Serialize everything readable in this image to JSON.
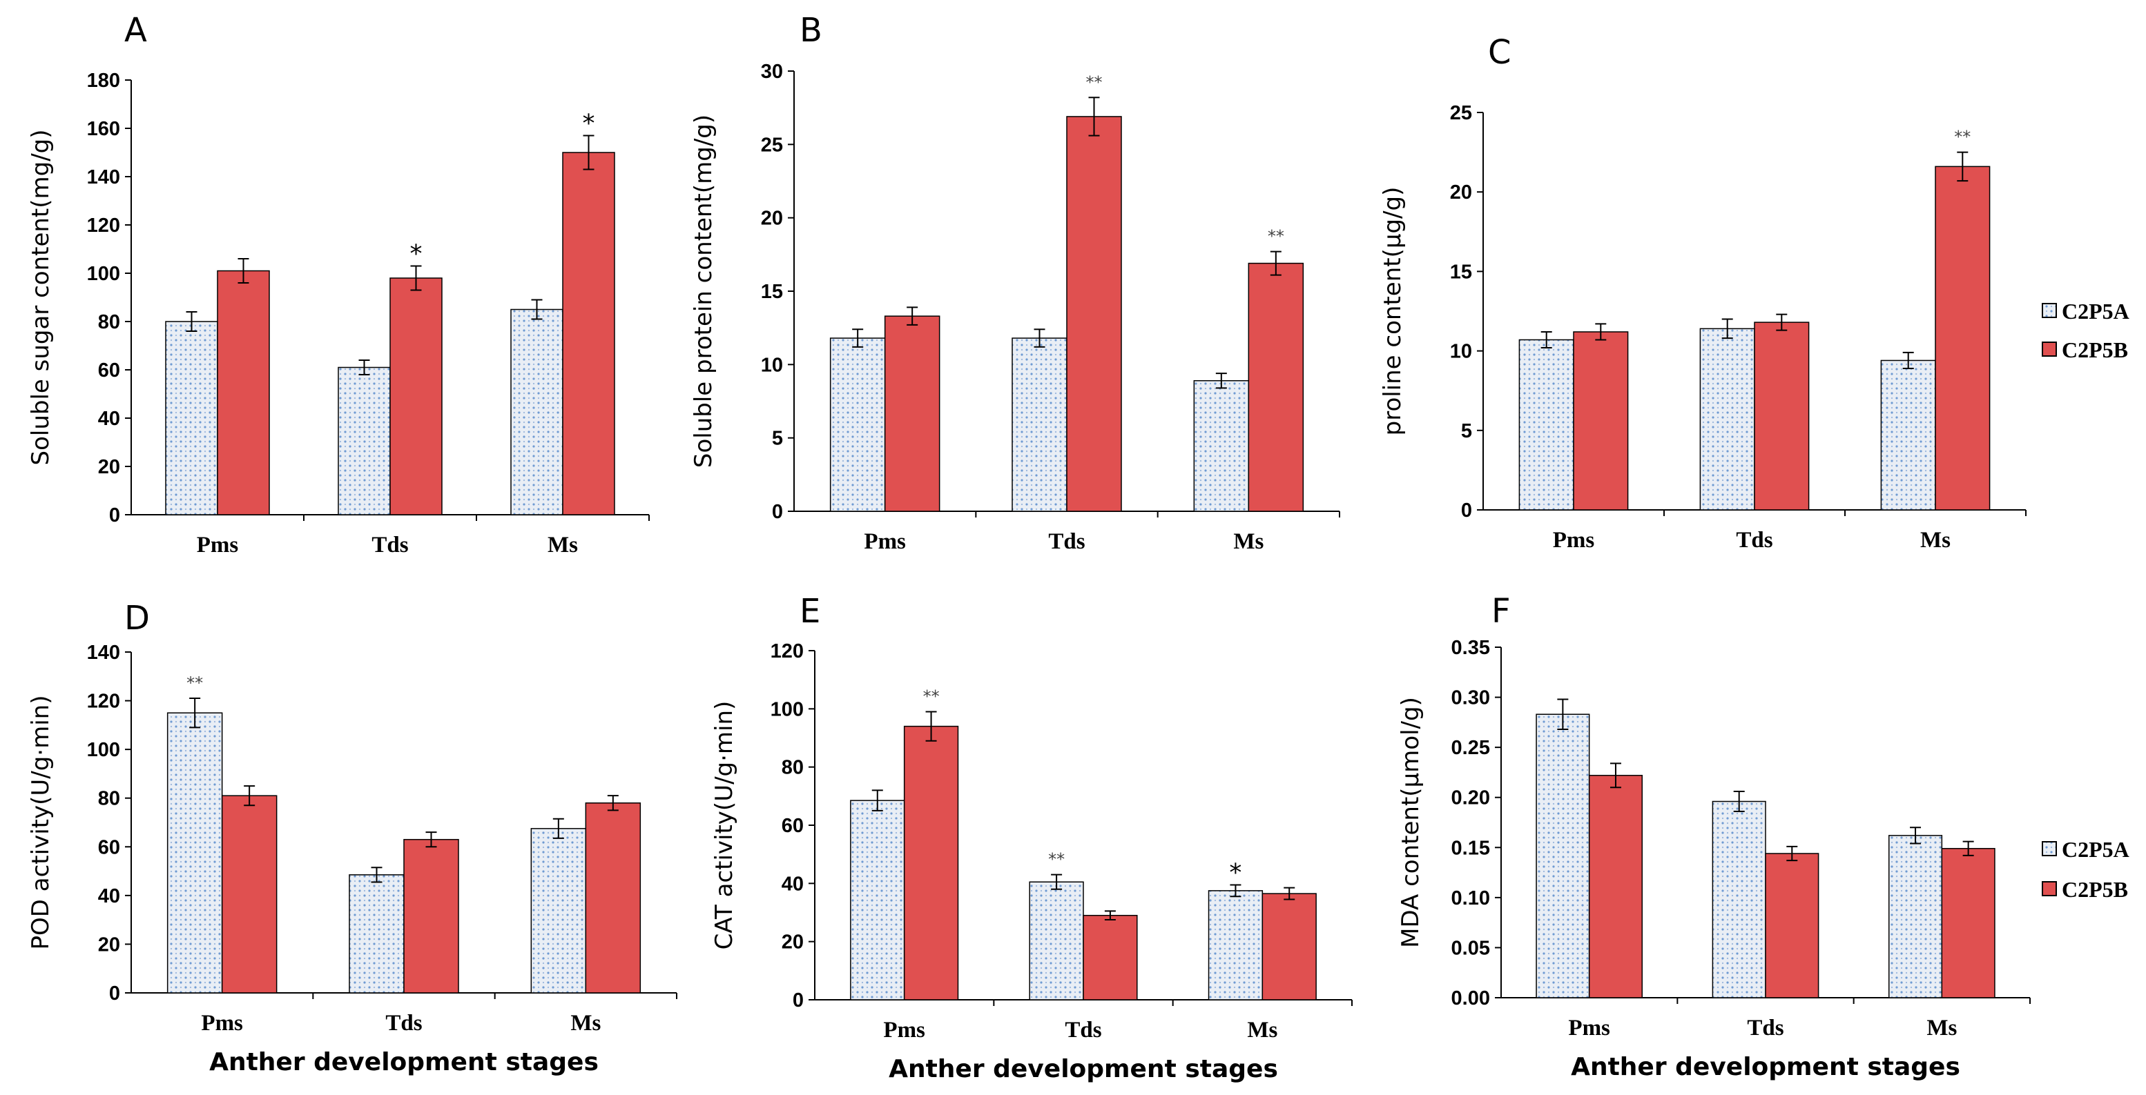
{
  "colors": {
    "series_a": "#dde6f0",
    "series_a_dots": "#6f9bd3",
    "series_b": "#e05050",
    "axis": "#000000"
  },
  "legends": [
    {
      "entries": [
        "C2P5A",
        "C2P5B"
      ]
    },
    {
      "entries": [
        "C2P5A",
        "C2P5B"
      ]
    }
  ],
  "chart_data": [
    {
      "type": "bar",
      "panel": "A",
      "categories": [
        "Pms",
        "Tds",
        "Ms"
      ],
      "ylabel": "Soluble  sugar content(mg/g)",
      "xlabel": "",
      "ylim": [
        0,
        180
      ],
      "yticks": [
        "0",
        "20",
        "40",
        "60",
        "80",
        "100",
        "120",
        "140",
        "160",
        "180"
      ],
      "series": [
        {
          "name": "C2P5A",
          "values": [
            80,
            61,
            85
          ],
          "errors": [
            4,
            3,
            4
          ]
        },
        {
          "name": "C2P5B",
          "values": [
            101,
            98,
            150
          ],
          "errors": [
            5,
            5,
            7
          ],
          "marks": [
            "",
            "*",
            "*"
          ]
        }
      ]
    },
    {
      "type": "bar",
      "panel": "B",
      "categories": [
        "Pms",
        "Tds",
        "Ms"
      ],
      "ylabel": "Soluble protein content(mg/g)",
      "xlabel": "",
      "ylim": [
        0,
        30
      ],
      "yticks": [
        "0",
        "5",
        "10",
        "15",
        "20",
        "25",
        "30"
      ],
      "series": [
        {
          "name": "C2P5A",
          "values": [
            11.8,
            11.8,
            8.9
          ],
          "errors": [
            0.6,
            0.6,
            0.5
          ]
        },
        {
          "name": "C2P5B",
          "values": [
            13.3,
            26.9,
            16.9
          ],
          "errors": [
            0.6,
            1.3,
            0.8
          ],
          "marks": [
            "",
            "**",
            "**"
          ]
        }
      ]
    },
    {
      "type": "bar",
      "panel": "C",
      "categories": [
        "Pms",
        "Tds",
        "Ms"
      ],
      "ylabel": "proline content(μg/g)",
      "xlabel": "",
      "ylim": [
        0,
        25
      ],
      "yticks": [
        "0",
        "5",
        "10",
        "15",
        "20",
        "25"
      ],
      "series": [
        {
          "name": "C2P5A",
          "values": [
            10.7,
            11.4,
            9.4
          ],
          "errors": [
            0.5,
            0.6,
            0.5
          ]
        },
        {
          "name": "C2P5B",
          "values": [
            11.2,
            11.8,
            21.6
          ],
          "errors": [
            0.5,
            0.5,
            0.9
          ],
          "marks": [
            "",
            "",
            "**"
          ]
        }
      ]
    },
    {
      "type": "bar",
      "panel": "D",
      "categories": [
        "Pms",
        "Tds",
        "Ms"
      ],
      "ylabel": "POD activity(U/g·min)",
      "xlabel": "Anther development stages",
      "ylim": [
        0,
        140
      ],
      "yticks": [
        "0",
        "20",
        "40",
        "60",
        "80",
        "100",
        "120",
        "140"
      ],
      "series": [
        {
          "name": "C2P5A",
          "values": [
            115,
            48.5,
            67.5
          ],
          "errors": [
            6,
            3,
            4
          ],
          "marks": [
            "**",
            "",
            ""
          ]
        },
        {
          "name": "C2P5B",
          "values": [
            81,
            63,
            78
          ],
          "errors": [
            4,
            3,
            3
          ]
        }
      ]
    },
    {
      "type": "bar",
      "panel": "E",
      "categories": [
        "Pms",
        "Tds",
        "Ms"
      ],
      "ylabel": "CAT activity(U/g·min)",
      "xlabel": "Anther development stages",
      "ylim": [
        0,
        120
      ],
      "yticks": [
        "0",
        "20",
        "40",
        "60",
        "80",
        "100",
        "120"
      ],
      "series": [
        {
          "name": "C2P5A",
          "values": [
            68.5,
            40.5,
            37.5
          ],
          "errors": [
            3.5,
            2.5,
            2
          ],
          "marks": [
            "",
            "**",
            "*"
          ]
        },
        {
          "name": "C2P5B",
          "values": [
            94,
            29,
            36.5
          ],
          "errors": [
            5,
            1.5,
            2
          ],
          "marks": [
            "**",
            "",
            ""
          ]
        }
      ]
    },
    {
      "type": "bar",
      "panel": "F",
      "categories": [
        "Pms",
        "Tds",
        "Ms"
      ],
      "ylabel": "MDA content(μmol/g)",
      "xlabel": "Anther development stages",
      "ylim": [
        0,
        0.35
      ],
      "yticks": [
        "0.00",
        "0.05",
        "0.10",
        "0.15",
        "0.20",
        "0.25",
        "0.30",
        "0.35"
      ],
      "series": [
        {
          "name": "C2P5A",
          "values": [
            0.283,
            0.196,
            0.162
          ],
          "errors": [
            0.015,
            0.01,
            0.008
          ]
        },
        {
          "name": "C2P5B",
          "values": [
            0.222,
            0.144,
            0.149
          ],
          "errors": [
            0.012,
            0.007,
            0.007
          ]
        }
      ]
    }
  ]
}
